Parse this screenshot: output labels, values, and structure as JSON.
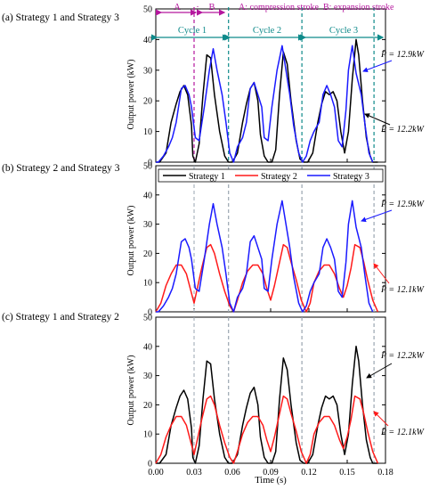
{
  "chart_data": [
    {
      "type": "line",
      "title": "(a) Strategy 1 and Strategy 3",
      "xlabel": "",
      "ylabel": "Output power (kW)",
      "xlim": [
        0,
        0.18
      ],
      "ylim": [
        0,
        50
      ],
      "yticks": [
        "0",
        "10",
        "20",
        "30",
        "40",
        "50"
      ],
      "annotations": {
        "stroke_a": "A",
        "stroke_dot": "·",
        "stroke_b": "B",
        "stroke_legend": "A: compression stroke  B: expansion stroke",
        "cycles": [
          "Cycle 1",
          "Cycle 2",
          "Cycle 3"
        ],
        "mean_upper": "P̄ = 12.9kW",
        "mean_lower": "P̄ = 12.2kW"
      },
      "series": [
        {
          "name": "Strategy 1",
          "color": "#000000",
          "x": [
            0,
            0.003,
            0.008,
            0.012,
            0.016,
            0.019,
            0.022,
            0.025,
            0.028,
            0.029,
            0.031,
            0.034,
            0.037,
            0.04,
            0.043,
            0.046,
            0.05,
            0.054,
            0.057,
            0.06,
            0.064,
            0.068,
            0.071,
            0.074,
            0.077,
            0.08,
            0.082,
            0.085,
            0.088,
            0.091,
            0.094,
            0.097,
            0.1,
            0.103,
            0.106,
            0.11,
            0.113,
            0.116,
            0.119,
            0.123,
            0.127,
            0.13,
            0.133,
            0.136,
            0.139,
            0.142,
            0.145,
            0.148,
            0.151,
            0.154,
            0.157,
            0.159,
            0.162,
            0.165,
            0.168,
            0.17,
            0.172,
            0.174
          ],
          "y": [
            0,
            0,
            3,
            13,
            19,
            23,
            25,
            22,
            12,
            2,
            0,
            6,
            22,
            35,
            34,
            22,
            10,
            2,
            0,
            0,
            3,
            13,
            19,
            24,
            26,
            20,
            9,
            2,
            0,
            0,
            4,
            22,
            36,
            32,
            20,
            7,
            1,
            0,
            0,
            3,
            13,
            19,
            23,
            22,
            23,
            20,
            10,
            3,
            10,
            27,
            40,
            35,
            20,
            8,
            2,
            0,
            0,
            0
          ]
        },
        {
          "name": "Strategy 3",
          "color": "#1a1aff",
          "x": [
            0,
            0.002,
            0.006,
            0.01,
            0.013,
            0.016,
            0.02,
            0.023,
            0.026,
            0.028,
            0.031,
            0.034,
            0.038,
            0.042,
            0.045,
            0.048,
            0.052,
            0.055,
            0.058,
            0.061,
            0.064,
            0.068,
            0.071,
            0.074,
            0.077,
            0.08,
            0.083,
            0.085,
            0.088,
            0.091,
            0.095,
            0.099,
            0.102,
            0.105,
            0.108,
            0.112,
            0.115,
            0.118,
            0.121,
            0.124,
            0.128,
            0.131,
            0.134,
            0.137,
            0.14,
            0.143,
            0.146,
            0.149,
            0.151,
            0.154,
            0.157,
            0.161,
            0.164,
            0.167,
            0.17
          ],
          "y": [
            0,
            0,
            2,
            5,
            8,
            13,
            24,
            25,
            22,
            18,
            8,
            7,
            18,
            30,
            37,
            30,
            22,
            13,
            3,
            0,
            5,
            8,
            13,
            24,
            26,
            22,
            18,
            8,
            7,
            18,
            30,
            38,
            30,
            22,
            12,
            3,
            0,
            2,
            7,
            10,
            13,
            22,
            25,
            22,
            18,
            7,
            5,
            17,
            30,
            38,
            29,
            22,
            12,
            3,
            0
          ]
        }
      ]
    },
    {
      "type": "line",
      "title": "(b) Strategy 2 and Strategy 3",
      "xlabel": "",
      "ylabel": "Output power (kW)",
      "xlim": [
        0,
        0.18
      ],
      "ylim": [
        0,
        50
      ],
      "yticks": [
        "0",
        "10",
        "20",
        "30",
        "40",
        "50"
      ],
      "legend_position": "top",
      "legend": [
        "Strategy 1",
        "Strategy 2",
        "Strategy 3"
      ],
      "annotations": {
        "mean_upper": "P̄ = 12.9kW",
        "mean_lower": "P̄ = 12.1kW"
      },
      "series": [
        {
          "name": "Strategy 2",
          "color": "#ff1a1a",
          "x": [
            0,
            0.004,
            0.008,
            0.012,
            0.016,
            0.02,
            0.024,
            0.027,
            0.03,
            0.033,
            0.036,
            0.04,
            0.043,
            0.046,
            0.05,
            0.054,
            0.058,
            0.061,
            0.064,
            0.068,
            0.072,
            0.076,
            0.08,
            0.084,
            0.087,
            0.09,
            0.093,
            0.096,
            0.1,
            0.103,
            0.106,
            0.11,
            0.114,
            0.118,
            0.121,
            0.124,
            0.128,
            0.132,
            0.136,
            0.14,
            0.144,
            0.147,
            0.15,
            0.153,
            0.156,
            0.16,
            0.163,
            0.166,
            0.17,
            0.174
          ],
          "y": [
            0,
            3,
            9,
            13,
            16,
            16,
            13,
            8,
            3,
            9,
            15,
            22,
            23,
            20,
            13,
            7,
            2,
            0,
            4,
            10,
            14,
            16,
            16,
            13,
            8,
            4,
            9,
            15,
            23,
            22,
            17,
            11,
            4,
            0,
            3,
            10,
            14,
            16,
            16,
            13,
            8,
            5,
            9,
            15,
            23,
            22,
            17,
            11,
            4,
            0
          ]
        },
        {
          "name": "Strategy 3",
          "color": "#1a1aff",
          "x": [
            0,
            0.002,
            0.006,
            0.01,
            0.013,
            0.016,
            0.02,
            0.023,
            0.026,
            0.028,
            0.031,
            0.034,
            0.038,
            0.042,
            0.045,
            0.048,
            0.052,
            0.055,
            0.058,
            0.061,
            0.064,
            0.068,
            0.071,
            0.074,
            0.077,
            0.08,
            0.083,
            0.085,
            0.088,
            0.091,
            0.095,
            0.099,
            0.102,
            0.105,
            0.108,
            0.112,
            0.115,
            0.118,
            0.121,
            0.124,
            0.128,
            0.131,
            0.134,
            0.137,
            0.14,
            0.143,
            0.146,
            0.149,
            0.151,
            0.154,
            0.157,
            0.161,
            0.164,
            0.167,
            0.17
          ],
          "y": [
            0,
            0,
            2,
            5,
            8,
            13,
            24,
            25,
            22,
            18,
            8,
            7,
            18,
            30,
            37,
            30,
            22,
            13,
            3,
            0,
            5,
            8,
            13,
            24,
            26,
            22,
            18,
            8,
            7,
            18,
            30,
            38,
            30,
            22,
            12,
            3,
            0,
            2,
            7,
            10,
            13,
            22,
            25,
            22,
            18,
            7,
            5,
            17,
            30,
            38,
            29,
            22,
            12,
            3,
            0
          ]
        }
      ]
    },
    {
      "type": "line",
      "title": "(c) Strategy 1 and Strategy 2",
      "xlabel": "Time (s)",
      "ylabel": "Output power (kW)",
      "xlim": [
        0,
        0.18
      ],
      "ylim": [
        0,
        50
      ],
      "xticks": [
        "0.00",
        "0.03",
        "0.06",
        "0.09",
        "0.12",
        "0.15",
        "0.18"
      ],
      "yticks": [
        "0",
        "10",
        "20",
        "30",
        "40",
        "50"
      ],
      "annotations": {
        "mean_upper": "P̄ = 12.2kW",
        "mean_lower": "P̄ = 12.1kW"
      },
      "series": [
        {
          "name": "Strategy 1",
          "color": "#000000",
          "x": [
            0,
            0.003,
            0.008,
            0.012,
            0.016,
            0.019,
            0.022,
            0.025,
            0.028,
            0.029,
            0.031,
            0.034,
            0.037,
            0.04,
            0.043,
            0.046,
            0.05,
            0.054,
            0.057,
            0.06,
            0.064,
            0.068,
            0.071,
            0.074,
            0.077,
            0.08,
            0.082,
            0.085,
            0.088,
            0.091,
            0.094,
            0.097,
            0.1,
            0.103,
            0.106,
            0.11,
            0.113,
            0.116,
            0.119,
            0.123,
            0.127,
            0.13,
            0.133,
            0.136,
            0.139,
            0.142,
            0.145,
            0.148,
            0.151,
            0.154,
            0.157,
            0.159,
            0.162,
            0.165,
            0.168,
            0.17,
            0.172,
            0.174
          ],
          "y": [
            0,
            0,
            3,
            13,
            19,
            23,
            25,
            22,
            12,
            2,
            0,
            6,
            22,
            35,
            34,
            22,
            10,
            2,
            0,
            0,
            3,
            13,
            19,
            24,
            26,
            20,
            9,
            2,
            0,
            0,
            4,
            22,
            36,
            32,
            20,
            7,
            1,
            0,
            0,
            3,
            13,
            19,
            23,
            22,
            23,
            20,
            10,
            3,
            10,
            27,
            40,
            35,
            20,
            8,
            2,
            0,
            0,
            0
          ]
        },
        {
          "name": "Strategy 2",
          "color": "#ff1a1a",
          "x": [
            0,
            0.004,
            0.008,
            0.012,
            0.016,
            0.02,
            0.024,
            0.027,
            0.03,
            0.033,
            0.036,
            0.04,
            0.043,
            0.046,
            0.05,
            0.054,
            0.058,
            0.061,
            0.064,
            0.068,
            0.072,
            0.076,
            0.08,
            0.084,
            0.087,
            0.09,
            0.093,
            0.096,
            0.1,
            0.103,
            0.106,
            0.11,
            0.114,
            0.118,
            0.121,
            0.124,
            0.128,
            0.132,
            0.136,
            0.14,
            0.144,
            0.147,
            0.15,
            0.153,
            0.156,
            0.16,
            0.163,
            0.166,
            0.17,
            0.174
          ],
          "y": [
            0,
            3,
            9,
            13,
            16,
            16,
            13,
            8,
            3,
            9,
            15,
            22,
            23,
            20,
            13,
            7,
            2,
            0,
            4,
            10,
            14,
            16,
            16,
            13,
            8,
            4,
            9,
            15,
            23,
            22,
            17,
            11,
            4,
            0,
            3,
            10,
            14,
            16,
            16,
            13,
            8,
            5,
            9,
            15,
            23,
            22,
            17,
            11,
            4,
            0
          ]
        }
      ]
    }
  ]
}
